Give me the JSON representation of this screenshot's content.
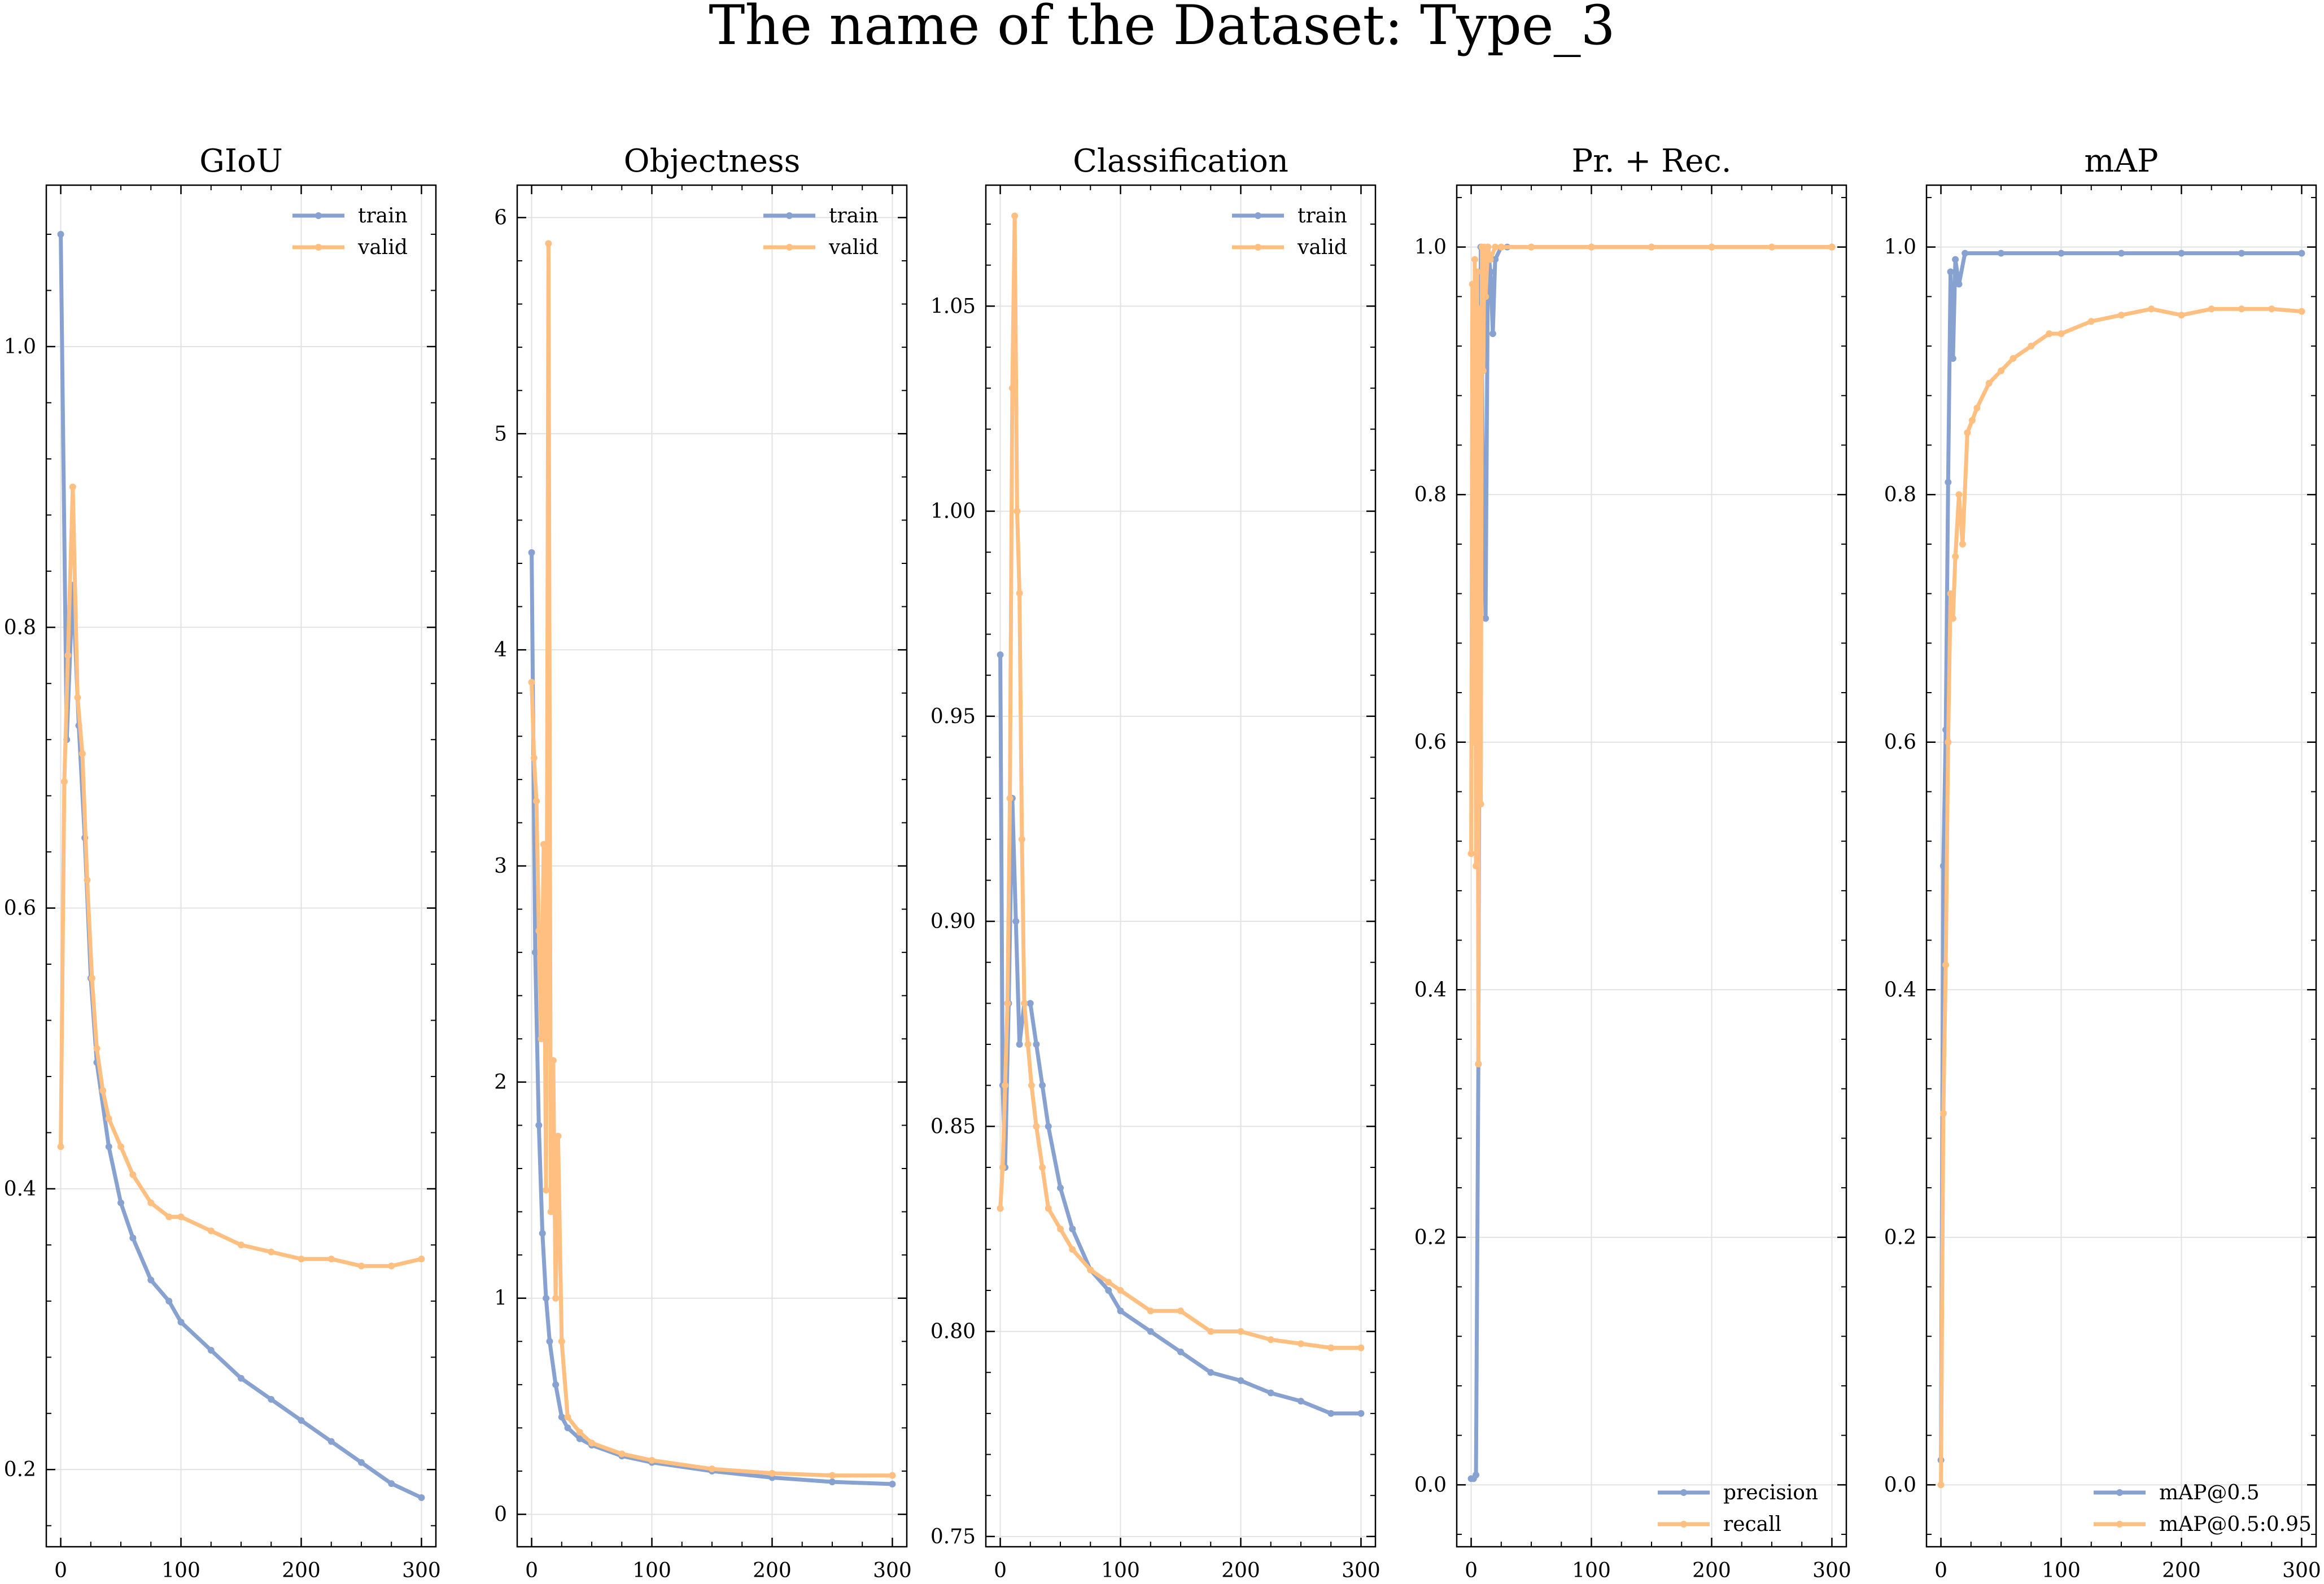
{
  "suptitle": "The name of the Dataset: Type_3",
  "colors": {
    "train": "#87a2d0",
    "valid": "#ffbf80"
  },
  "chart_data": [
    {
      "type": "line",
      "title": "GIoU",
      "xlim": [
        -12,
        312
      ],
      "ylim": [
        0.145,
        1.115
      ],
      "xticks": [
        0,
        100,
        200,
        300
      ],
      "yticks": [
        0.2,
        0.4,
        0.6,
        0.8,
        1.0
      ],
      "ytick_labels": [
        "0.2",
        "0.4",
        "0.6",
        "0.8",
        "1.0"
      ],
      "grid": true,
      "legend_position": "top-right",
      "series": [
        {
          "name": "train",
          "color_key": "train",
          "x": [
            0,
            5,
            10,
            15,
            20,
            25,
            30,
            40,
            50,
            60,
            75,
            90,
            100,
            125,
            150,
            175,
            200,
            225,
            250,
            275,
            300
          ],
          "y": [
            1.08,
            0.72,
            0.83,
            0.73,
            0.65,
            0.55,
            0.49,
            0.43,
            0.39,
            0.365,
            0.335,
            0.32,
            0.305,
            0.285,
            0.265,
            0.25,
            0.235,
            0.22,
            0.205,
            0.19,
            0.18
          ]
        },
        {
          "name": "valid",
          "color_key": "valid",
          "x": [
            0,
            3,
            6,
            10,
            14,
            18,
            22,
            26,
            30,
            35,
            40,
            50,
            60,
            75,
            90,
            100,
            125,
            150,
            175,
            200,
            225,
            250,
            275,
            300
          ],
          "y": [
            0.43,
            0.69,
            0.78,
            0.9,
            0.75,
            0.71,
            0.62,
            0.55,
            0.5,
            0.47,
            0.45,
            0.43,
            0.41,
            0.39,
            0.38,
            0.38,
            0.37,
            0.36,
            0.355,
            0.35,
            0.35,
            0.345,
            0.345,
            0.35
          ]
        }
      ]
    },
    {
      "type": "line",
      "title": "Objectness",
      "xlim": [
        -12,
        312
      ],
      "ylim": [
        -0.15,
        6.15
      ],
      "xticks": [
        0,
        100,
        200,
        300
      ],
      "yticks": [
        0,
        1,
        2,
        3,
        4,
        5,
        6
      ],
      "ytick_labels": [
        "0",
        "1",
        "2",
        "3",
        "4",
        "5",
        "6"
      ],
      "grid": true,
      "legend_position": "top-right",
      "series": [
        {
          "name": "train",
          "color_key": "train",
          "x": [
            0,
            3,
            6,
            9,
            12,
            15,
            20,
            25,
            30,
            40,
            50,
            75,
            100,
            150,
            200,
            250,
            300
          ],
          "y": [
            4.45,
            2.6,
            1.8,
            1.3,
            1.0,
            0.8,
            0.6,
            0.45,
            0.4,
            0.35,
            0.32,
            0.27,
            0.24,
            0.2,
            0.17,
            0.15,
            0.14
          ]
        },
        {
          "name": "valid",
          "color_key": "valid",
          "x": [
            0,
            2,
            4,
            6,
            8,
            10,
            12,
            14,
            16,
            18,
            20,
            22,
            25,
            30,
            40,
            50,
            75,
            100,
            150,
            200,
            250,
            300
          ],
          "y": [
            3.85,
            3.5,
            3.3,
            2.7,
            2.2,
            3.1,
            1.5,
            5.88,
            1.4,
            2.1,
            1.0,
            1.75,
            0.8,
            0.45,
            0.38,
            0.33,
            0.28,
            0.25,
            0.21,
            0.19,
            0.18,
            0.18
          ]
        }
      ]
    },
    {
      "type": "line",
      "title": "Classification",
      "xlim": [
        -12,
        312
      ],
      "ylim": [
        0.7475,
        1.0795
      ],
      "xticks": [
        0,
        100,
        200,
        300
      ],
      "yticks": [
        0.75,
        0.8,
        0.85,
        0.9,
        0.95,
        1.0,
        1.05
      ],
      "ytick_labels": [
        "0.75",
        "0.80",
        "0.85",
        "0.90",
        "0.95",
        "1.00",
        "1.05"
      ],
      "grid": true,
      "legend_position": "top-right",
      "series": [
        {
          "name": "train",
          "color_key": "train",
          "x": [
            0,
            2,
            4,
            7,
            10,
            13,
            16,
            20,
            25,
            30,
            35,
            40,
            50,
            60,
            75,
            90,
            100,
            125,
            150,
            175,
            200,
            225,
            250,
            275,
            300
          ],
          "y": [
            0.965,
            0.86,
            0.84,
            0.88,
            0.93,
            0.9,
            0.87,
            0.88,
            0.88,
            0.87,
            0.86,
            0.85,
            0.835,
            0.825,
            0.815,
            0.81,
            0.805,
            0.8,
            0.795,
            0.79,
            0.788,
            0.785,
            0.783,
            0.78,
            0.78
          ]
        },
        {
          "name": "valid",
          "color_key": "valid",
          "x": [
            0,
            2,
            4,
            6,
            8,
            10,
            12,
            14,
            16,
            18,
            20,
            23,
            26,
            30,
            35,
            40,
            50,
            60,
            75,
            90,
            100,
            125,
            150,
            175,
            200,
            225,
            250,
            275,
            300
          ],
          "y": [
            0.83,
            0.84,
            0.86,
            0.88,
            0.93,
            1.03,
            1.072,
            1.0,
            0.98,
            0.92,
            0.88,
            0.87,
            0.86,
            0.85,
            0.84,
            0.83,
            0.825,
            0.82,
            0.815,
            0.812,
            0.81,
            0.805,
            0.805,
            0.8,
            0.8,
            0.798,
            0.797,
            0.796,
            0.796
          ]
        }
      ]
    },
    {
      "type": "line",
      "title": "Pr. + Rec.",
      "xlim": [
        -12,
        312
      ],
      "ylim": [
        -0.05,
        1.05
      ],
      "xticks": [
        0,
        100,
        200,
        300
      ],
      "yticks": [
        0.0,
        0.2,
        0.4,
        0.6,
        0.8,
        1.0
      ],
      "ytick_labels": [
        "0.0",
        "0.2",
        "0.4",
        "0.6",
        "0.8",
        "1.0"
      ],
      "grid": true,
      "legend_position": "bottom-right",
      "series": [
        {
          "name": "precision",
          "color_key": "train",
          "x": [
            0,
            2,
            4,
            6,
            8,
            10,
            12,
            14,
            16,
            18,
            20,
            25,
            30,
            50,
            100,
            150,
            200,
            250,
            300
          ],
          "y": [
            0.005,
            0.005,
            0.008,
            0.34,
            1.0,
            0.8,
            0.7,
            1.0,
            0.98,
            0.93,
            0.99,
            1.0,
            1.0,
            1.0,
            1.0,
            1.0,
            1.0,
            1.0,
            1.0
          ]
        },
        {
          "name": "recall",
          "color_key": "valid",
          "x": [
            0,
            1,
            2,
            3,
            4,
            5,
            6,
            7,
            8,
            9,
            10,
            11,
            12,
            14,
            16,
            20,
            25,
            50,
            100,
            150,
            200,
            250,
            300
          ],
          "y": [
            0.51,
            0.97,
            0.6,
            0.99,
            0.5,
            0.98,
            0.34,
            0.95,
            0.55,
            1.0,
            0.9,
            1.0,
            0.96,
            1.0,
            0.99,
            1.0,
            1.0,
            1.0,
            1.0,
            1.0,
            1.0,
            1.0,
            1.0
          ]
        }
      ]
    },
    {
      "type": "line",
      "title": "mAP",
      "xlim": [
        -12,
        312
      ],
      "ylim": [
        -0.05,
        1.05
      ],
      "xticks": [
        0,
        100,
        200,
        300
      ],
      "yticks": [
        0.0,
        0.2,
        0.4,
        0.6,
        0.8,
        1.0
      ],
      "ytick_labels": [
        "0.0",
        "0.2",
        "0.4",
        "0.6",
        "0.8",
        "1.0"
      ],
      "grid": true,
      "legend_position": "bottom-right",
      "series": [
        {
          "name": "mAP@0.5",
          "color_key": "train",
          "x": [
            0,
            2,
            4,
            6,
            8,
            10,
            12,
            15,
            20,
            50,
            100,
            150,
            200,
            250,
            300
          ],
          "y": [
            0.02,
            0.5,
            0.61,
            0.81,
            0.98,
            0.91,
            0.99,
            0.97,
            0.995,
            0.995,
            0.995,
            0.995,
            0.995,
            0.995,
            0.995
          ]
        },
        {
          "name": "mAP@0.5:0.95",
          "color_key": "valid",
          "x": [
            0,
            2,
            4,
            6,
            8,
            10,
            12,
            15,
            18,
            22,
            26,
            30,
            40,
            50,
            60,
            75,
            90,
            100,
            125,
            150,
            175,
            200,
            225,
            250,
            275,
            300
          ],
          "y": [
            0.0,
            0.3,
            0.42,
            0.6,
            0.72,
            0.7,
            0.75,
            0.8,
            0.76,
            0.85,
            0.86,
            0.87,
            0.89,
            0.9,
            0.91,
            0.92,
            0.93,
            0.93,
            0.94,
            0.945,
            0.95,
            0.945,
            0.95,
            0.95,
            0.95,
            0.948
          ]
        }
      ]
    }
  ]
}
